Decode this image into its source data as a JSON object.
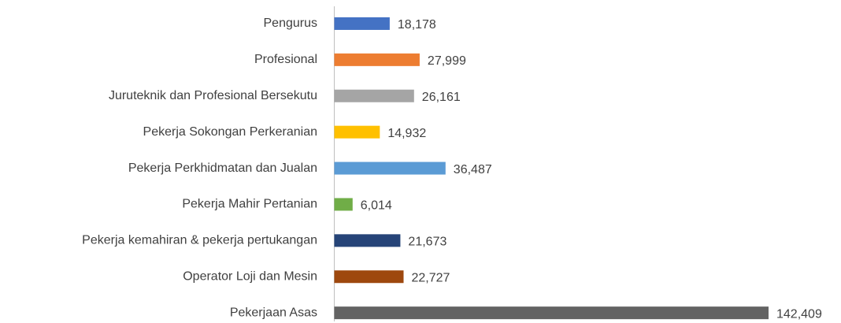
{
  "chart_data": {
    "type": "bar",
    "orientation": "horizontal",
    "categories": [
      "Pengurus",
      "Profesional",
      "Juruteknik dan Profesional Bersekutu",
      "Pekerja Sokongan Perkeranian",
      "Pekerja Perkhidmatan dan Jualan",
      "Pekerja Mahir Pertanian",
      "Pekerja kemahiran & pekerja pertukangan",
      "Operator Loji dan Mesin",
      "Pekerjaan Asas"
    ],
    "values": [
      18178,
      27999,
      26161,
      14932,
      36487,
      6014,
      21673,
      22727,
      142409
    ],
    "value_labels": [
      "18,178",
      "27,999",
      "26,161",
      "14,932",
      "36,487",
      "6,014",
      "21,673",
      "22,727",
      "142,409"
    ],
    "colors": [
      "#4472c4",
      "#ed7d31",
      "#a5a5a5",
      "#ffc000",
      "#5b9bd5",
      "#70ad47",
      "#264478",
      "#9e480e",
      "#636363"
    ]
  }
}
